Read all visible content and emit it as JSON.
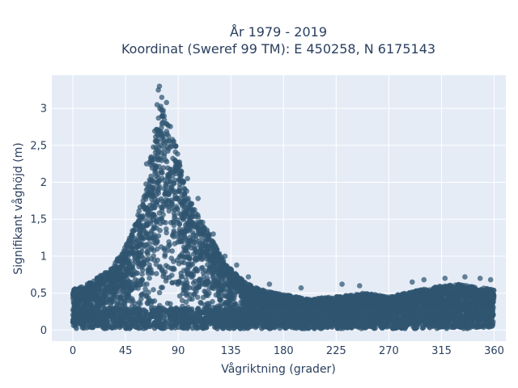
{
  "chart_data": {
    "type": "scatter",
    "title": [
      "År 1979 - 2019",
      "Koordinat (Sweref 99 TM): E 450258, N 6175143"
    ],
    "xlabel": "Vågriktning (grader)",
    "ylabel": "Signifikant våghöjd (m)",
    "xlim": [
      -18,
      370
    ],
    "ylim": [
      -0.15,
      3.45
    ],
    "xticks": [
      0,
      45,
      90,
      135,
      180,
      225,
      270,
      315,
      360
    ],
    "xtick_labels": [
      "0",
      "45",
      "90",
      "135",
      "180",
      "225",
      "270",
      "315",
      "360"
    ],
    "yticks": [
      0,
      0.5,
      1,
      1.5,
      2,
      2.5,
      3
    ],
    "ytick_labels": [
      "0",
      "0,5",
      "1",
      "1,5",
      "2",
      "2,5",
      "3"
    ],
    "grid": true,
    "marker_color": "#2f5570",
    "plot_background": "#e5ecf6",
    "envelope": {
      "direction": [
        0,
        10,
        20,
        30,
        40,
        50,
        60,
        65,
        70,
        75,
        80,
        85,
        90,
        95,
        100,
        110,
        120,
        130,
        140,
        150,
        160,
        180,
        200,
        225,
        250,
        270,
        290,
        315,
        330,
        345,
        360
      ],
      "max_height": [
        0.55,
        0.6,
        0.7,
        0.8,
        1.0,
        1.3,
        1.8,
        2.2,
        2.7,
        3.05,
        3.0,
        2.7,
        2.35,
        2.0,
        1.75,
        1.5,
        1.2,
        0.9,
        0.75,
        0.62,
        0.55,
        0.48,
        0.42,
        0.45,
        0.5,
        0.45,
        0.52,
        0.6,
        0.62,
        0.58,
        0.55
      ]
    },
    "outliers": [
      {
        "x": 74,
        "y": 3.3
      },
      {
        "x": 73,
        "y": 3.25
      },
      {
        "x": 76,
        "y": 3.15
      },
      {
        "x": 72,
        "y": 3.05
      },
      {
        "x": 80,
        "y": 3.08
      },
      {
        "x": 63,
        "y": 2.25
      },
      {
        "x": 60,
        "y": 1.75
      },
      {
        "x": 98,
        "y": 2.05
      },
      {
        "x": 107,
        "y": 1.78
      },
      {
        "x": 120,
        "y": 1.3
      },
      {
        "x": 130,
        "y": 1.0
      },
      {
        "x": 140,
        "y": 0.88
      },
      {
        "x": 150,
        "y": 0.72
      },
      {
        "x": 168,
        "y": 0.62
      },
      {
        "x": 195,
        "y": 0.57
      },
      {
        "x": 230,
        "y": 0.62
      },
      {
        "x": 245,
        "y": 0.6
      },
      {
        "x": 290,
        "y": 0.65
      },
      {
        "x": 300,
        "y": 0.68
      },
      {
        "x": 318,
        "y": 0.7
      },
      {
        "x": 335,
        "y": 0.72
      },
      {
        "x": 348,
        "y": 0.7
      },
      {
        "x": 357,
        "y": 0.68
      }
    ]
  }
}
